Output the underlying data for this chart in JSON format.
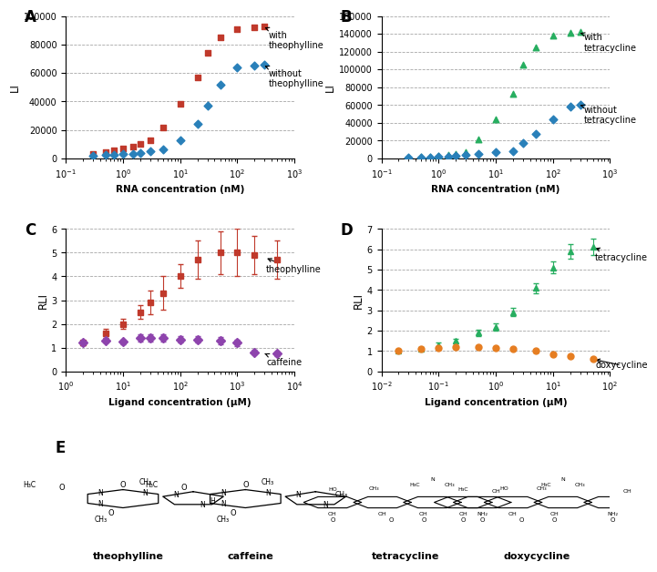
{
  "panel_A": {
    "title": "A",
    "xlabel": "RNA concentration (nM)",
    "ylabel": "LI",
    "ylim": [
      0,
      100000
    ],
    "yticks": [
      0,
      20000,
      40000,
      60000,
      80000,
      100000
    ],
    "xlim": [
      0.1,
      1000
    ],
    "with_x": [
      0.3,
      0.5,
      0.7,
      1.0,
      1.5,
      2.0,
      3.0,
      5.0,
      10.0,
      20.0,
      30.0,
      50.0,
      100.0,
      200.0,
      300.0
    ],
    "with_y": [
      3500,
      4500,
      5500,
      7000,
      8500,
      10000,
      13000,
      22000,
      38500,
      57000,
      74000,
      85000,
      91000,
      92000,
      93000
    ],
    "without_x": [
      0.3,
      0.5,
      0.7,
      1.0,
      1.5,
      2.0,
      3.0,
      5.0,
      10.0,
      20.0,
      30.0,
      50.0,
      100.0,
      200.0,
      300.0
    ],
    "without_y": [
      2000,
      2500,
      2800,
      3200,
      3500,
      4000,
      5000,
      6500,
      13000,
      24000,
      37000,
      52000,
      64000,
      65000,
      66000
    ],
    "with_color": "#c0392b",
    "without_color": "#2980b9",
    "with_label": "with\ntheophylline",
    "without_label": "without\ntheophylline",
    "with_marker": "s",
    "without_marker": "D"
  },
  "panel_B": {
    "title": "B",
    "xlabel": "RNA concentration (nM)",
    "ylabel": "LI",
    "ylim": [
      0,
      160000
    ],
    "yticks": [
      0,
      20000,
      40000,
      60000,
      80000,
      100000,
      120000,
      140000,
      160000
    ],
    "xlim": [
      0.1,
      1000
    ],
    "with_x": [
      0.3,
      0.5,
      0.7,
      1.0,
      1.5,
      2.0,
      3.0,
      5.0,
      10.0,
      20.0,
      30.0,
      50.0,
      100.0,
      200.0,
      300.0
    ],
    "with_y": [
      1500,
      2000,
      2500,
      3000,
      4000,
      5000,
      7000,
      22000,
      44000,
      73000,
      105000,
      125000,
      138000,
      141000,
      142000
    ],
    "without_x": [
      0.3,
      0.5,
      0.7,
      1.0,
      1.5,
      2.0,
      3.0,
      5.0,
      10.0,
      20.0,
      30.0,
      50.0,
      100.0,
      200.0,
      300.0
    ],
    "without_y": [
      1000,
      1200,
      1500,
      2000,
      2500,
      3000,
      4000,
      5000,
      7000,
      8000,
      17500,
      28000,
      44000,
      58000,
      60000
    ],
    "with_color": "#27ae60",
    "without_color": "#2980b9",
    "with_label": "with\ntetracycline",
    "without_label": "without\ntetracycline",
    "with_marker": "^",
    "without_marker": "D"
  },
  "panel_C": {
    "title": "C",
    "xlabel": "Ligand concentration (μM)",
    "ylabel": "RLI",
    "ylim": [
      0,
      6
    ],
    "yticks": [
      0,
      1,
      2,
      3,
      4,
      5,
      6
    ],
    "xlim": [
      1,
      10000
    ],
    "theo_x": [
      2,
      5,
      10,
      20,
      30,
      50,
      100,
      200,
      500,
      1000,
      2000,
      5000
    ],
    "theo_y": [
      1.2,
      1.6,
      2.0,
      2.5,
      2.9,
      3.3,
      4.0,
      4.7,
      5.0,
      5.0,
      4.9,
      4.7
    ],
    "theo_yerr": [
      0.1,
      0.2,
      0.2,
      0.3,
      0.5,
      0.7,
      0.5,
      0.8,
      0.9,
      1.0,
      0.8,
      0.8
    ],
    "caff_x": [
      2,
      5,
      10,
      20,
      30,
      50,
      100,
      200,
      500,
      1000,
      2000,
      5000
    ],
    "caff_y": [
      1.2,
      1.3,
      1.25,
      1.4,
      1.4,
      1.4,
      1.35,
      1.35,
      1.3,
      1.2,
      0.8,
      0.75
    ],
    "caff_yerr": [
      0.1,
      0.1,
      0.1,
      0.15,
      0.15,
      0.15,
      0.15,
      0.15,
      0.15,
      0.15,
      0.1,
      0.1
    ],
    "theo_color": "#c0392b",
    "caff_color": "#8e44ad",
    "theo_label": "theophylline",
    "caff_label": "caffeine",
    "theo_marker": "s",
    "caff_marker": "D"
  },
  "panel_D": {
    "title": "D",
    "xlabel": "Ligand concentration (μM)",
    "ylabel": "RLI",
    "ylim": [
      0,
      7
    ],
    "yticks": [
      0,
      1,
      2,
      3,
      4,
      5,
      6,
      7
    ],
    "xlim": [
      0.01,
      100
    ],
    "tet_x": [
      0.02,
      0.05,
      0.1,
      0.2,
      0.5,
      1.0,
      2.0,
      5.0,
      10.0,
      20.0,
      50.0
    ],
    "tet_y": [
      1.0,
      1.1,
      1.3,
      1.5,
      1.9,
      2.2,
      2.9,
      4.1,
      5.1,
      5.9,
      6.1
    ],
    "tet_yerr": [
      0.05,
      0.08,
      0.1,
      0.12,
      0.15,
      0.18,
      0.2,
      0.25,
      0.3,
      0.35,
      0.4
    ],
    "dox_x": [
      0.02,
      0.05,
      0.1,
      0.2,
      0.5,
      1.0,
      2.0,
      5.0,
      10.0,
      20.0,
      50.0
    ],
    "dox_y": [
      1.0,
      1.1,
      1.15,
      1.2,
      1.2,
      1.15,
      1.1,
      1.0,
      0.85,
      0.75,
      0.6
    ],
    "dox_yerr": [
      0.05,
      0.05,
      0.05,
      0.05,
      0.05,
      0.05,
      0.05,
      0.05,
      0.05,
      0.05,
      0.05
    ],
    "tet_color": "#27ae60",
    "dox_color": "#e67e22",
    "tet_label": "tetracycline",
    "dox_label": "doxycycline",
    "tet_marker": "^",
    "dox_marker": "o"
  },
  "mol_names": [
    "theophylline",
    "caffeine",
    "tetracycline",
    "doxycycline"
  ],
  "background_color": "#ffffff"
}
